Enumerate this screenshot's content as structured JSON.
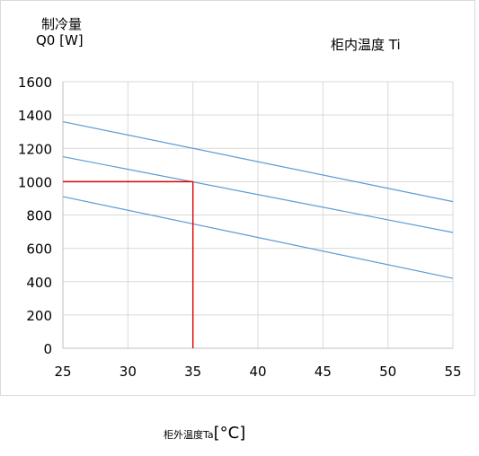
{
  "chart_data": {
    "type": "line",
    "ylabel": [
      "制冷量",
      "Q0 [W]"
    ],
    "xlabel": "柜外温度Ta",
    "xlabel_unit": "[°C]",
    "series_title": "柜内温度  Ti",
    "x": [
      25,
      55
    ],
    "xticks": [
      "25",
      "30",
      "35",
      "40",
      "45",
      "50",
      "55"
    ],
    "yticks": [
      "0",
      "200",
      "400",
      "600",
      "800",
      "1000",
      "1200",
      "1400",
      "1600"
    ],
    "xlim": [
      25,
      55
    ],
    "ylim": [
      0,
      1600
    ],
    "grid": true,
    "series": [
      {
        "values": [
          1360,
          880
        ],
        "color": "#5b9bd5"
      },
      {
        "values": [
          1150,
          695
        ],
        "color": "#5b9bd5"
      },
      {
        "values": [
          910,
          420
        ],
        "color": "#5b9bd5"
      }
    ],
    "annotation": {
      "x": 35,
      "y": 1000,
      "color": "#e00000"
    },
    "colors": {
      "frame": "#d9d9d9",
      "grid": "#d9d9d9",
      "axis": "#bfbfbf"
    }
  }
}
